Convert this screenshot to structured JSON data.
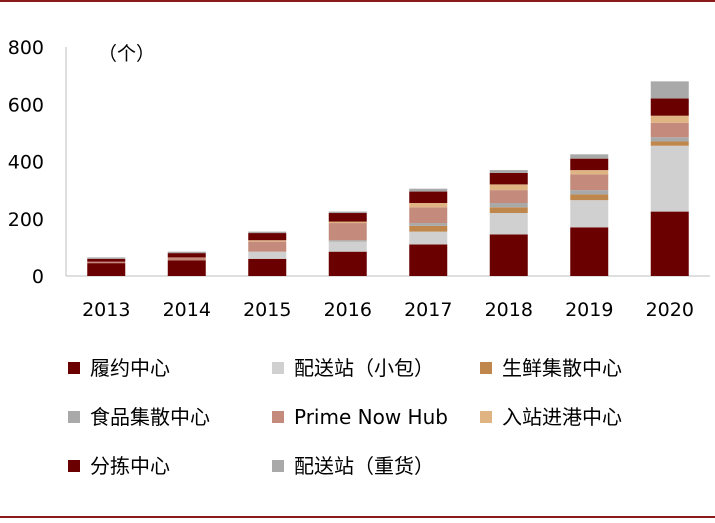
{
  "chart_data": {
    "type": "bar",
    "stacked": true,
    "unit_label": "（个）",
    "ylim": [
      0,
      800
    ],
    "yticks": [
      0,
      200,
      400,
      600,
      800
    ],
    "categories": [
      "2013",
      "2014",
      "2015",
      "2016",
      "2017",
      "2018",
      "2019",
      "2020"
    ],
    "series": [
      {
        "name": "履约中心",
        "color": "#6b0000",
        "values": [
          45,
          55,
          60,
          85,
          110,
          145,
          170,
          225
        ]
      },
      {
        "name": "配送站（小包）",
        "color": "#d0d0d0",
        "values": [
          0,
          0,
          25,
          35,
          45,
          75,
          95,
          230
        ]
      },
      {
        "name": "生鲜集散中心",
        "color": "#c0874c",
        "values": [
          0,
          0,
          0,
          0,
          20,
          20,
          20,
          15
        ]
      },
      {
        "name": "食品集散中心",
        "color": "#a9a9a9",
        "values": [
          0,
          0,
          0,
          5,
          10,
          15,
          15,
          15
        ]
      },
      {
        "name": "Prime Now Hub",
        "color": "#c48a7c",
        "values": [
          5,
          10,
          35,
          60,
          55,
          45,
          55,
          50
        ]
      },
      {
        "name": "入站进港中心",
        "color": "#e0b383",
        "values": [
          0,
          0,
          5,
          5,
          15,
          20,
          15,
          25
        ]
      },
      {
        "name": "分拣中心",
        "color": "#6b0000",
        "values": [
          10,
          15,
          25,
          30,
          40,
          40,
          40,
          60
        ]
      },
      {
        "name": "配送站（重货）",
        "color": "#a9a9a9",
        "values": [
          5,
          5,
          5,
          5,
          10,
          10,
          15,
          60
        ]
      }
    ],
    "grid": false,
    "legend_position": "bottom"
  }
}
